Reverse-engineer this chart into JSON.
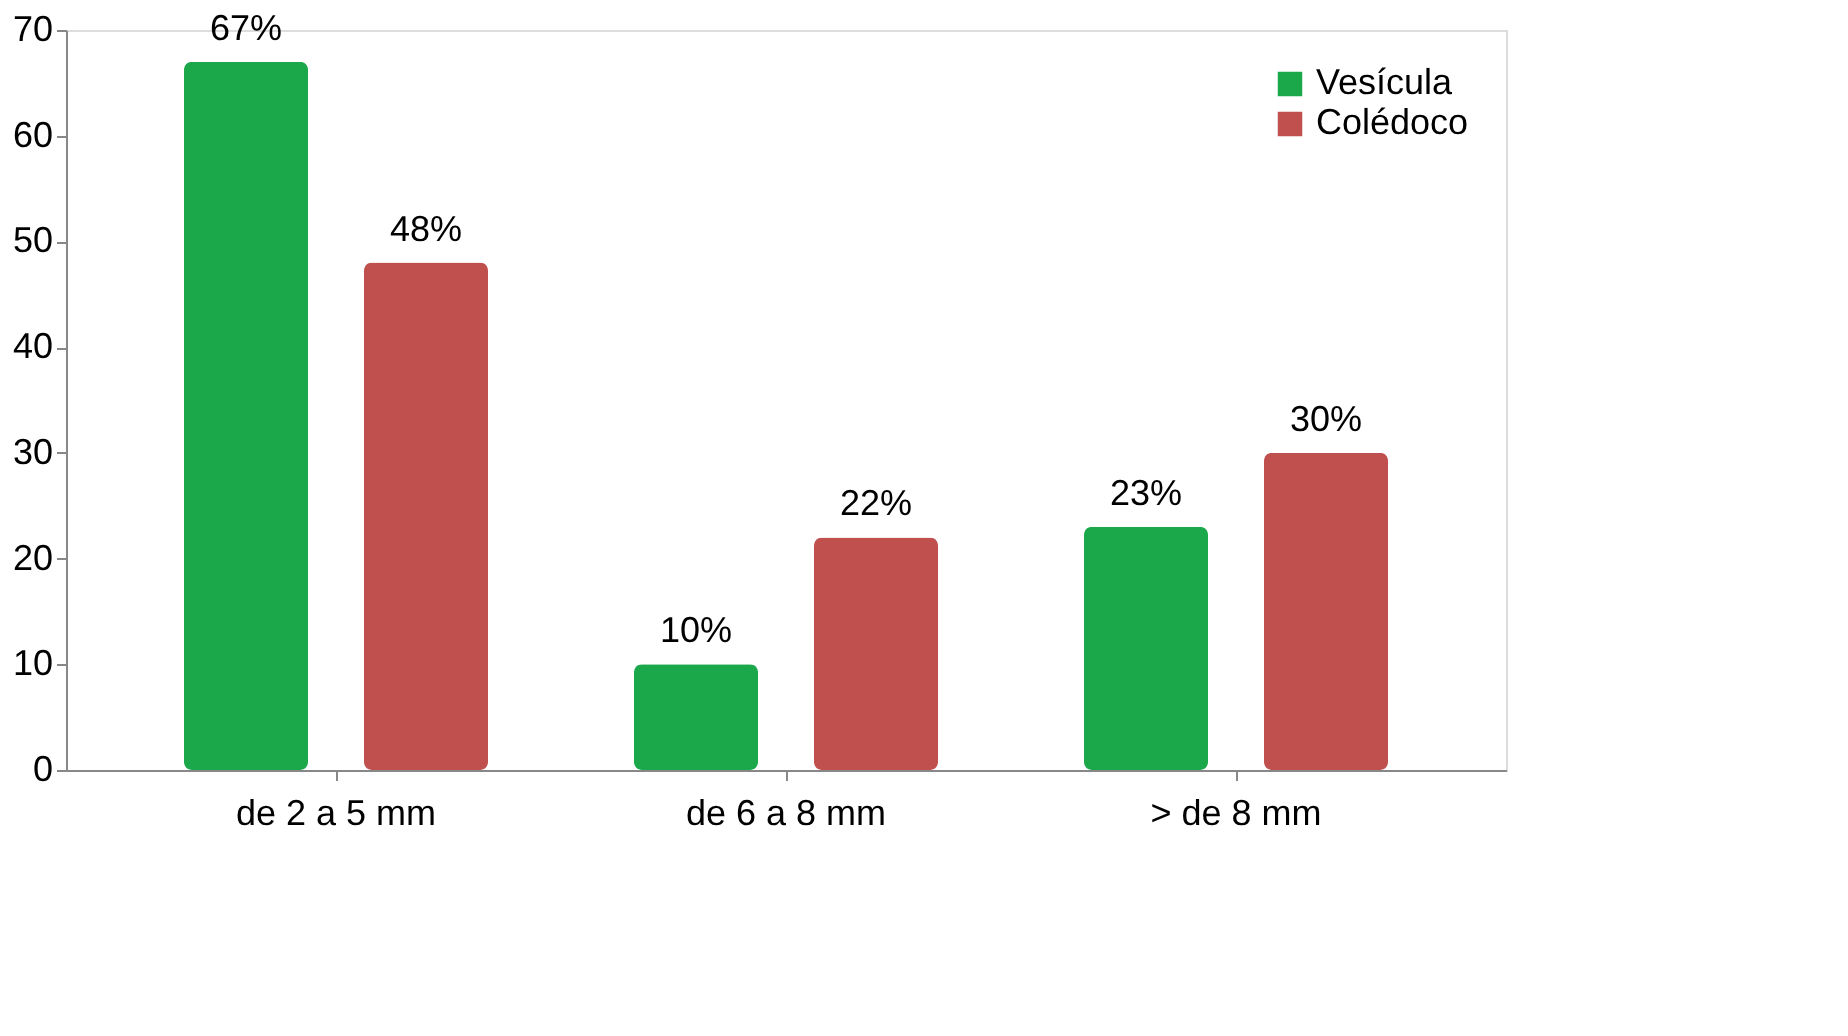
{
  "chart_data": {
    "type": "bar",
    "categories": [
      "de 2 a 5 mm",
      "de 6 a 8 mm",
      "> de 8 mm"
    ],
    "series": [
      {
        "name": "Vesícula",
        "color": "#1aa84a",
        "values": [
          67,
          10,
          23
        ],
        "value_labels": [
          "67%",
          "10%",
          "23%"
        ]
      },
      {
        "name": "Colédoco",
        "color": "#c0504d",
        "values": [
          48,
          22,
          30
        ],
        "value_labels": [
          "48%",
          "22%",
          "30%"
        ]
      }
    ],
    "ylim": [
      0,
      70
    ],
    "yticks": [
      0,
      10,
      20,
      30,
      40,
      50,
      60,
      70
    ],
    "grid": false,
    "legend": "top right"
  }
}
